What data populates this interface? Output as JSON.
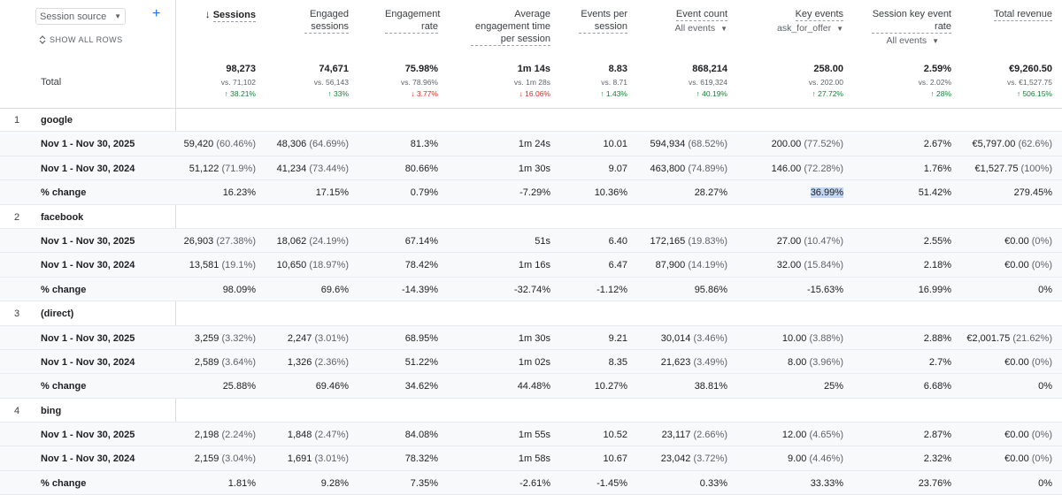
{
  "dimension": {
    "selector_label": "Session source",
    "add_label": "+",
    "show_all_label": "SHOW ALL ROWS",
    "total_label": "Total"
  },
  "columns": [
    {
      "key": "sessions",
      "label": "Sessions",
      "sorted": true,
      "sub": "",
      "total": {
        "value": "98,273",
        "vs": "vs. 71,102",
        "change": "38.21%",
        "dir": "up"
      }
    },
    {
      "key": "engaged",
      "label": "Engaged sessions",
      "sub": "",
      "total": {
        "value": "74,671",
        "vs": "vs. 56,143",
        "change": "33%",
        "dir": "up"
      }
    },
    {
      "key": "engrate",
      "label": "Engagement rate",
      "sub": "",
      "total": {
        "value": "75.98%",
        "vs": "vs. 78.96%",
        "change": "3.77%",
        "dir": "down"
      }
    },
    {
      "key": "avgtime",
      "label": "Average engagement time per session",
      "sub": "",
      "total": {
        "value": "1m 14s",
        "vs": "vs. 1m 28s",
        "change": "16.06%",
        "dir": "down"
      }
    },
    {
      "key": "eps",
      "label": "Events per session",
      "sub": "",
      "total": {
        "value": "8.83",
        "vs": "vs. 8.71",
        "change": "1.43%",
        "dir": "up"
      }
    },
    {
      "key": "events",
      "label": "Event count",
      "sub": "All events",
      "total": {
        "value": "868,214",
        "vs": "vs. 619,324",
        "change": "40.19%",
        "dir": "up"
      }
    },
    {
      "key": "keyev",
      "label": "Key events",
      "sub": "ask_for_offer",
      "total": {
        "value": "258.00",
        "vs": "vs. 202.00",
        "change": "27.72%",
        "dir": "up"
      }
    },
    {
      "key": "skerate",
      "label": "Session key event rate",
      "sub": "All events",
      "total": {
        "value": "2.59%",
        "vs": "vs. 2.02%",
        "change": "28%",
        "dir": "up"
      }
    },
    {
      "key": "revenue",
      "label": "Total revenue",
      "sub": "",
      "total": {
        "value": "€9,260.50",
        "vs": "vs. €1,527.75",
        "change": "506.15%",
        "dir": "up"
      }
    }
  ],
  "groups": [
    {
      "index": "1",
      "name": "google",
      "rows": [
        {
          "label": "Nov 1 - Nov 30, 2025",
          "cells": [
            [
              "59,420",
              "(60.46%)"
            ],
            [
              "48,306",
              "(64.69%)"
            ],
            [
              "81.3%",
              ""
            ],
            [
              "1m 24s",
              ""
            ],
            [
              "10.01",
              ""
            ],
            [
              "594,934",
              "(68.52%)"
            ],
            [
              "200.00",
              "(77.52%)"
            ],
            [
              "2.67%",
              ""
            ],
            [
              "€5,797.00",
              "(62.6%)"
            ]
          ]
        },
        {
          "label": "Nov 1 - Nov 30, 2024",
          "cells": [
            [
              "51,122",
              "(71.9%)"
            ],
            [
              "41,234",
              "(73.44%)"
            ],
            [
              "80.66%",
              ""
            ],
            [
              "1m 30s",
              ""
            ],
            [
              "9.07",
              ""
            ],
            [
              "463,800",
              "(74.89%)"
            ],
            [
              "146.00",
              "(72.28%)"
            ],
            [
              "1.76%",
              ""
            ],
            [
              "€1,527.75",
              "(100%)"
            ]
          ]
        },
        {
          "label": "% change",
          "cells": [
            [
              "16.23%",
              ""
            ],
            [
              "17.15%",
              ""
            ],
            [
              "0.79%",
              ""
            ],
            [
              "-7.29%",
              ""
            ],
            [
              "10.36%",
              ""
            ],
            [
              "28.27%",
              ""
            ],
            [
              "36.99%",
              ""
            ],
            [
              "51.42%",
              ""
            ],
            [
              "279.45%",
              ""
            ]
          ]
        }
      ]
    },
    {
      "index": "2",
      "name": "facebook",
      "rows": [
        {
          "label": "Nov 1 - Nov 30, 2025",
          "cells": [
            [
              "26,903",
              "(27.38%)"
            ],
            [
              "18,062",
              "(24.19%)"
            ],
            [
              "67.14%",
              ""
            ],
            [
              "51s",
              ""
            ],
            [
              "6.40",
              ""
            ],
            [
              "172,165",
              "(19.83%)"
            ],
            [
              "27.00",
              "(10.47%)"
            ],
            [
              "2.55%",
              ""
            ],
            [
              "€0.00",
              "(0%)"
            ]
          ]
        },
        {
          "label": "Nov 1 - Nov 30, 2024",
          "cells": [
            [
              "13,581",
              "(19.1%)"
            ],
            [
              "10,650",
              "(18.97%)"
            ],
            [
              "78.42%",
              ""
            ],
            [
              "1m 16s",
              ""
            ],
            [
              "6.47",
              ""
            ],
            [
              "87,900",
              "(14.19%)"
            ],
            [
              "32.00",
              "(15.84%)"
            ],
            [
              "2.18%",
              ""
            ],
            [
              "€0.00",
              "(0%)"
            ]
          ]
        },
        {
          "label": "% change",
          "cells": [
            [
              "98.09%",
              ""
            ],
            [
              "69.6%",
              ""
            ],
            [
              "-14.39%",
              ""
            ],
            [
              "-32.74%",
              ""
            ],
            [
              "-1.12%",
              ""
            ],
            [
              "95.86%",
              ""
            ],
            [
              "-15.63%",
              ""
            ],
            [
              "16.99%",
              ""
            ],
            [
              "0%",
              ""
            ]
          ]
        }
      ]
    },
    {
      "index": "3",
      "name": "(direct)",
      "rows": [
        {
          "label": "Nov 1 - Nov 30, 2025",
          "cells": [
            [
              "3,259",
              "(3.32%)"
            ],
            [
              "2,247",
              "(3.01%)"
            ],
            [
              "68.95%",
              ""
            ],
            [
              "1m 30s",
              ""
            ],
            [
              "9.21",
              ""
            ],
            [
              "30,014",
              "(3.46%)"
            ],
            [
              "10.00",
              "(3.88%)"
            ],
            [
              "2.88%",
              ""
            ],
            [
              "€2,001.75",
              "(21.62%)"
            ]
          ]
        },
        {
          "label": "Nov 1 - Nov 30, 2024",
          "cells": [
            [
              "2,589",
              "(3.64%)"
            ],
            [
              "1,326",
              "(2.36%)"
            ],
            [
              "51.22%",
              ""
            ],
            [
              "1m 02s",
              ""
            ],
            [
              "8.35",
              ""
            ],
            [
              "21,623",
              "(3.49%)"
            ],
            [
              "8.00",
              "(3.96%)"
            ],
            [
              "2.7%",
              ""
            ],
            [
              "€0.00",
              "(0%)"
            ]
          ]
        },
        {
          "label": "% change",
          "cells": [
            [
              "25.88%",
              ""
            ],
            [
              "69.46%",
              ""
            ],
            [
              "34.62%",
              ""
            ],
            [
              "44.48%",
              ""
            ],
            [
              "10.27%",
              ""
            ],
            [
              "38.81%",
              ""
            ],
            [
              "25%",
              ""
            ],
            [
              "6.68%",
              ""
            ],
            [
              "0%",
              ""
            ]
          ]
        }
      ]
    },
    {
      "index": "4",
      "name": "bing",
      "rows": [
        {
          "label": "Nov 1 - Nov 30, 2025",
          "cells": [
            [
              "2,198",
              "(2.24%)"
            ],
            [
              "1,848",
              "(2.47%)"
            ],
            [
              "84.08%",
              ""
            ],
            [
              "1m 55s",
              ""
            ],
            [
              "10.52",
              ""
            ],
            [
              "23,117",
              "(2.66%)"
            ],
            [
              "12.00",
              "(4.65%)"
            ],
            [
              "2.87%",
              ""
            ],
            [
              "€0.00",
              "(0%)"
            ]
          ]
        },
        {
          "label": "Nov 1 - Nov 30, 2024",
          "cells": [
            [
              "2,159",
              "(3.04%)"
            ],
            [
              "1,691",
              "(3.01%)"
            ],
            [
              "78.32%",
              ""
            ],
            [
              "1m 58s",
              ""
            ],
            [
              "10.67",
              ""
            ],
            [
              "23,042",
              "(3.72%)"
            ],
            [
              "9.00",
              "(4.46%)"
            ],
            [
              "2.32%",
              ""
            ],
            [
              "€0.00",
              "(0%)"
            ]
          ]
        },
        {
          "label": "% change",
          "cells": [
            [
              "1.81%",
              ""
            ],
            [
              "9.28%",
              ""
            ],
            [
              "7.35%",
              ""
            ],
            [
              "-2.61%",
              ""
            ],
            [
              "-1.45%",
              ""
            ],
            [
              "0.33%",
              ""
            ],
            [
              "33.33%",
              ""
            ],
            [
              "23.76%",
              ""
            ],
            [
              "0%",
              ""
            ]
          ]
        }
      ]
    }
  ]
}
